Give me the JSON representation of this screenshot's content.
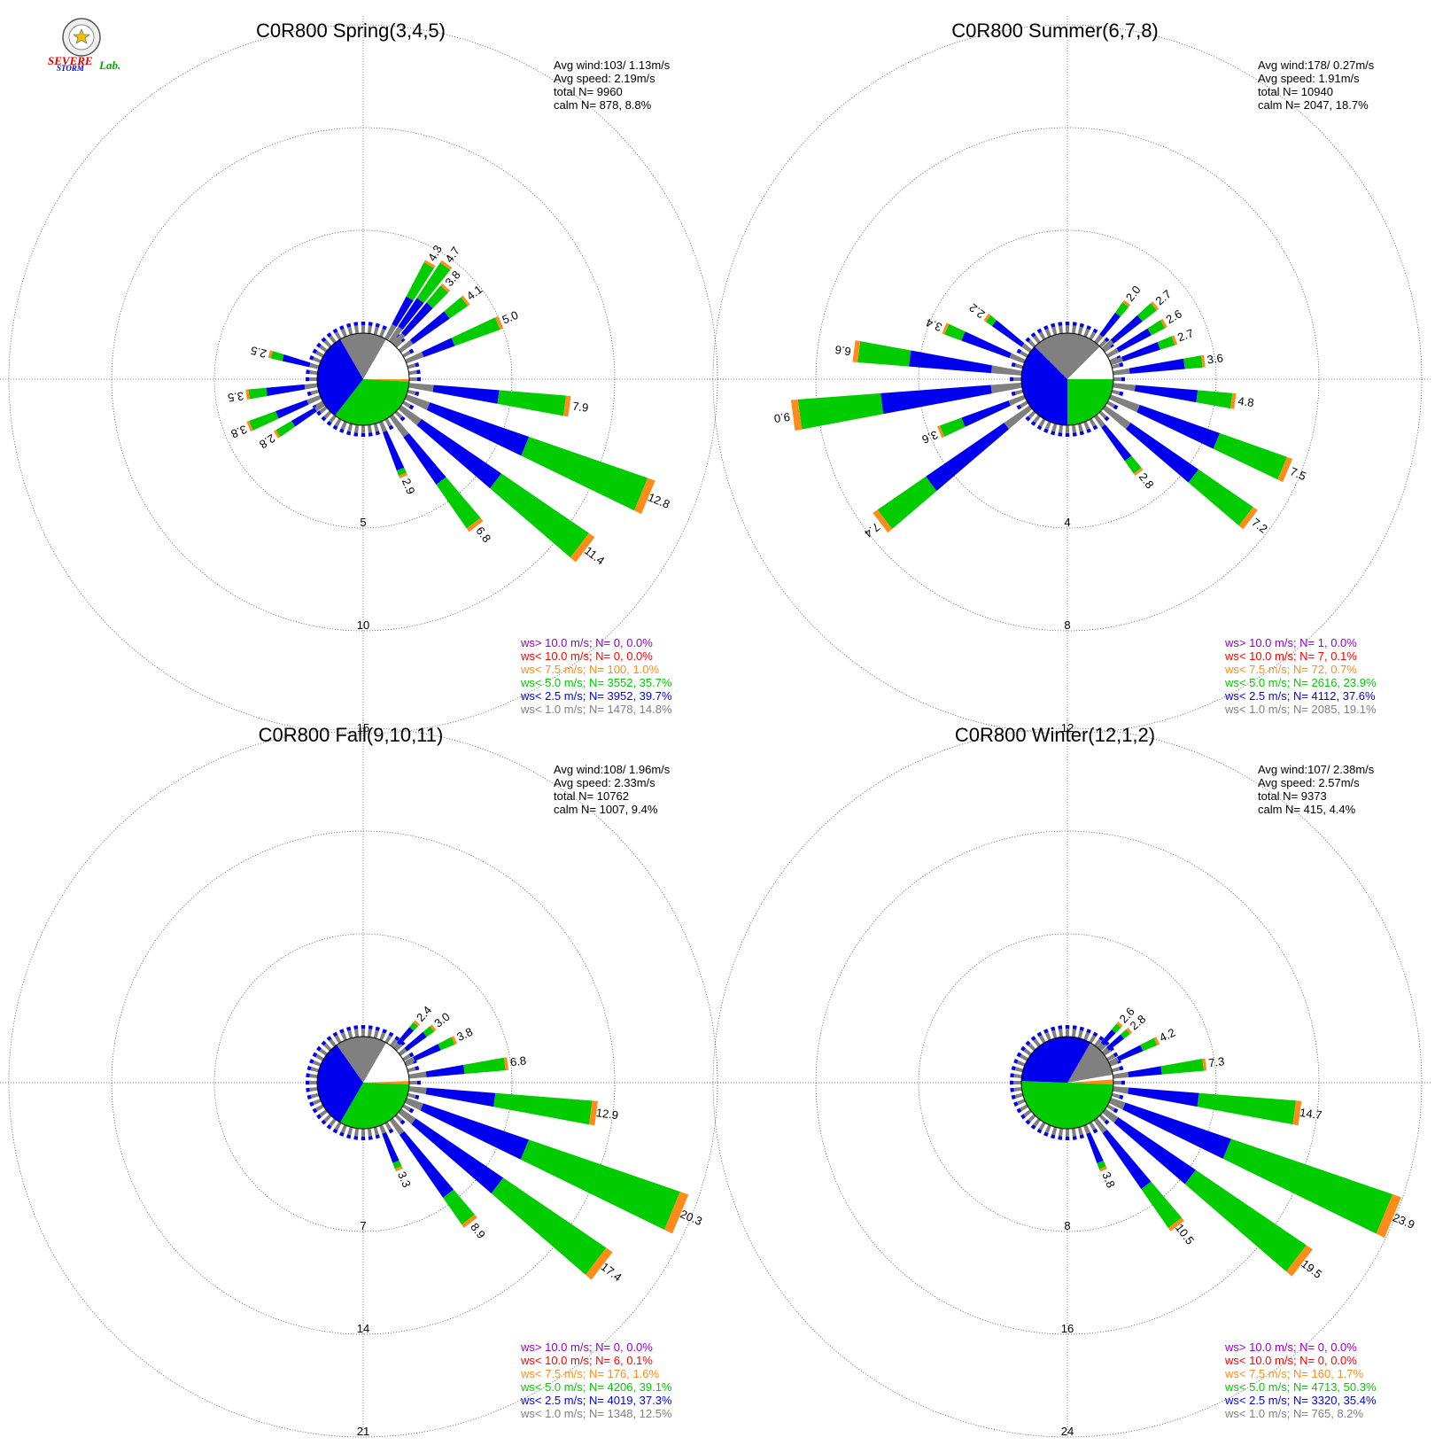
{
  "logo": {
    "line1": "SEVERE",
    "line2": "STORM",
    "line3": "Lab."
  },
  "legend_colors": {
    "gt10": "#9400d3",
    "lt10": "#ff0000",
    "lt7_5": "#ff8c1a",
    "lt5": "#00cc00",
    "lt2_5": "#0000ee",
    "lt1": "#808080"
  },
  "chart_data": [
    {
      "type": "windrose",
      "title": "C0R800 Spring(3,4,5)",
      "stats": [
        "Avg wind:103/ 1.13m/s",
        "Avg speed: 2.19m/s",
        "total N=      9960",
        "calm N=    878,   8.8%"
      ],
      "rings": [
        "5",
        "10",
        "15"
      ],
      "max": 15,
      "calm_pie": [
        {
          "class": "lt1",
          "from": -30,
          "to": 30
        },
        {
          "class": "white",
          "from": 30,
          "to": 90
        },
        {
          "class": "lt7_5",
          "from": 90,
          "to": 93
        },
        {
          "class": "lt5",
          "from": 93,
          "to": 218
        },
        {
          "class": "lt2_5",
          "from": 218,
          "to": 330
        }
      ],
      "petals": [
        {
          "dir": 67.5,
          "total": 5.0,
          "green": 2.5,
          "label": "5.0"
        },
        {
          "dir": 52.5,
          "total": 4.1,
          "green": 1.2,
          "label": "4.1"
        },
        {
          "dir": 42,
          "total": 3.8,
          "green": 1.2,
          "label": "3.8"
        },
        {
          "dir": 36,
          "total": 4.7,
          "green": 2.2,
          "label": "4.7"
        },
        {
          "dir": 30,
          "total": 4.3,
          "green": 2.0,
          "label": "4.3"
        },
        {
          "dir": 97.5,
          "total": 7.9,
          "green": 3.5,
          "label": "7.9"
        },
        {
          "dir": 112.5,
          "total": 12.8,
          "green": 6.5,
          "label": "12.8"
        },
        {
          "dir": 127.5,
          "total": 11.4,
          "green": 5.5,
          "label": "11.4"
        },
        {
          "dir": 142.5,
          "total": 6.8,
          "green": 2.8,
          "label": "6.8"
        },
        {
          "dir": 157.5,
          "total": 2.9,
          "green": 0.4,
          "label": "2.9"
        },
        {
          "dir": 262.5,
          "total": 3.5,
          "green": 1.0,
          "label": "3.5"
        },
        {
          "dir": 247.5,
          "total": 3.8,
          "green": 1.5,
          "label": "3.8"
        },
        {
          "dir": 237.5,
          "total": 2.8,
          "green": 1.0,
          "label": "2.8"
        },
        {
          "dir": 285,
          "total": 2.5,
          "green": 0.7,
          "label": "2.5"
        }
      ],
      "legend": [
        {
          "class": "gt10",
          "text": "ws> 10.0 m/s; N=      0,   0.0%"
        },
        {
          "class": "lt10",
          "text": "ws< 10.0 m/s; N=      0,   0.0%"
        },
        {
          "class": "lt7_5",
          "text": "ws<  7.5 m/s; N=    100,   1.0%"
        },
        {
          "class": "lt5",
          "text": "ws<  5.0 m/s; N=  3552, 35.7%"
        },
        {
          "class": "lt2_5",
          "text": "ws<  2.5 m/s; N=  3952, 39.7%"
        },
        {
          "class": "lt1",
          "text": "ws<  1.0 m/s; N=  1478, 14.8%"
        }
      ]
    },
    {
      "type": "windrose",
      "title": "C0R800 Summer(6,7,8)",
      "stats": [
        "Avg wind:178/ 0.27m/s",
        "Avg speed: 1.91m/s",
        "total N=      10940",
        "calm N=   2047,  18.7%"
      ],
      "rings": [
        "4",
        "8",
        "12"
      ],
      "max": 12,
      "calm_pie": [
        {
          "class": "lt1",
          "from": -45,
          "to": 45
        },
        {
          "class": "white",
          "from": 45,
          "to": 90
        },
        {
          "class": "lt5",
          "from": 90,
          "to": 180
        },
        {
          "class": "lt2_5",
          "from": 180,
          "to": 315
        }
      ],
      "petals": [
        {
          "dir": 82.5,
          "total": 3.6,
          "green": 0.8,
          "label": "3.6"
        },
        {
          "dir": 70,
          "total": 2.7,
          "green": 0.7,
          "label": "2.7"
        },
        {
          "dir": 60,
          "total": 2.6,
          "green": 0.7,
          "label": "2.6"
        },
        {
          "dir": 50,
          "total": 2.7,
          "green": 0.8,
          "label": "2.7"
        },
        {
          "dir": 38,
          "total": 2.0,
          "green": 0.6,
          "label": "2.0"
        },
        {
          "dir": 97.5,
          "total": 4.8,
          "green": 1.5,
          "label": "4.8"
        },
        {
          "dir": 112.5,
          "total": 7.5,
          "green": 3.0,
          "label": "7.5"
        },
        {
          "dir": 127.5,
          "total": 7.2,
          "green": 2.8,
          "label": "7.2"
        },
        {
          "dir": 142.5,
          "total": 2.8,
          "green": 0.7,
          "label": "2.8"
        },
        {
          "dir": 247.5,
          "total": 3.6,
          "green": 1.0,
          "label": "3.6"
        },
        {
          "dir": 262.5,
          "total": 9.0,
          "green": 3.5,
          "label": "9.0"
        },
        {
          "dir": 277.5,
          "total": 6.6,
          "green": 2.2,
          "label": "6.6"
        },
        {
          "dir": 232.5,
          "total": 7.4,
          "green": 2.5,
          "label": "7.4"
        },
        {
          "dir": 292.5,
          "total": 3.4,
          "green": 0.8,
          "label": "3.4"
        },
        {
          "dir": 307.5,
          "total": 2.2,
          "green": 0.4,
          "label": "2.2"
        }
      ],
      "legend": [
        {
          "class": "gt10",
          "text": "ws> 10.0 m/s; N=      1,   0.0%"
        },
        {
          "class": "lt10",
          "text": "ws< 10.0 m/s; N=      7,   0.1%"
        },
        {
          "class": "lt7_5",
          "text": "ws<  7.5 m/s; N=     72,   0.7%"
        },
        {
          "class": "lt5",
          "text": "ws<  5.0 m/s; N=  2616, 23.9%"
        },
        {
          "class": "lt2_5",
          "text": "ws<  2.5 m/s; N=  4112, 37.6%"
        },
        {
          "class": "lt1",
          "text": "ws<  1.0 m/s; N=  2085, 19.1%"
        }
      ]
    },
    {
      "type": "windrose",
      "title": "C0R800 Fall(9,10,11)",
      "stats": [
        "Avg wind:108/ 1.96m/s",
        "Avg speed: 2.33m/s",
        "total N=      10762",
        "calm N=   1007,   9.4%"
      ],
      "rings": [
        "7",
        "14",
        "21"
      ],
      "max": 21,
      "calm_pie": [
        {
          "class": "lt1",
          "from": -35,
          "to": 30
        },
        {
          "class": "white",
          "from": 30,
          "to": 88
        },
        {
          "class": "lt7_5",
          "from": 88,
          "to": 92
        },
        {
          "class": "lt5",
          "from": 92,
          "to": 210
        },
        {
          "class": "lt2_5",
          "from": 210,
          "to": 325
        }
      ],
      "petals": [
        {
          "dir": 82.5,
          "total": 6.8,
          "green": 3.0,
          "label": "6.8"
        },
        {
          "dir": 65,
          "total": 3.8,
          "green": 1.2,
          "label": "3.8"
        },
        {
          "dir": 52,
          "total": 3.0,
          "green": 0.8,
          "label": "3.0"
        },
        {
          "dir": 42,
          "total": 2.4,
          "green": 0.6,
          "label": "2.4"
        },
        {
          "dir": 97.5,
          "total": 12.9,
          "green": 7.0,
          "label": "12.9"
        },
        {
          "dir": 112.5,
          "total": 20.3,
          "green": 11.5,
          "label": "20.3"
        },
        {
          "dir": 127.5,
          "total": 17.4,
          "green": 9.0,
          "label": "17.4"
        },
        {
          "dir": 142.5,
          "total": 8.9,
          "green": 2.5,
          "label": "8.9"
        },
        {
          "dir": 157.5,
          "total": 3.3,
          "green": 0.6,
          "label": "3.3"
        }
      ],
      "legend": [
        {
          "class": "gt10",
          "text": "ws> 10.0 m/s; N=      0,   0.0%"
        },
        {
          "class": "lt10",
          "text": "ws< 10.0 m/s; N=      6,   0.1%"
        },
        {
          "class": "lt7_5",
          "text": "ws<  7.5 m/s; N=    176,   1.6%"
        },
        {
          "class": "lt5",
          "text": "ws<  5.0 m/s; N=  4206, 39.1%"
        },
        {
          "class": "lt2_5",
          "text": "ws<  2.5 m/s; N=  4019, 37.3%"
        },
        {
          "class": "lt1",
          "text": "ws<  1.0 m/s; N=  1348, 12.5%"
        }
      ]
    },
    {
      "type": "windrose",
      "title": "C0R800 Winter(12,1,2)",
      "stats": [
        "Avg wind:107/ 2.38m/s",
        "Avg speed: 2.57m/s",
        "total N=       9373",
        "calm N=    415,   4.4%"
      ],
      "rings": [
        "8",
        "16",
        "24"
      ],
      "max": 24,
      "calm_pie": [
        {
          "class": "lt1",
          "from": 30,
          "to": 80
        },
        {
          "class": "white",
          "from": 80,
          "to": 86
        },
        {
          "class": "lt7_5",
          "from": 86,
          "to": 92
        },
        {
          "class": "lt5",
          "from": 92,
          "to": 272
        },
        {
          "class": "lt2_5",
          "from": 272,
          "to": 390
        }
      ],
      "petals": [
        {
          "dir": 82.5,
          "total": 7.3,
          "green": 3.5,
          "label": "7.3"
        },
        {
          "dir": 65,
          "total": 4.2,
          "green": 1.4,
          "label": "4.2"
        },
        {
          "dir": 50,
          "total": 2.8,
          "green": 0.8,
          "label": "2.8"
        },
        {
          "dir": 42,
          "total": 2.6,
          "green": 0.8,
          "label": "2.6"
        },
        {
          "dir": 97.5,
          "total": 14.7,
          "green": 8.0,
          "label": "14.7"
        },
        {
          "dir": 112.5,
          "total": 23.9,
          "green": 14.0,
          "label": "23.9"
        },
        {
          "dir": 127.5,
          "total": 19.5,
          "green": 11.0,
          "label": "19.5"
        },
        {
          "dir": 142.5,
          "total": 10.5,
          "green": 4.0,
          "label": "10.5"
        },
        {
          "dir": 157.5,
          "total": 3.8,
          "green": 0.7,
          "label": "3.8"
        }
      ],
      "legend": [
        {
          "class": "gt10",
          "text": "ws> 10.0 m/s; N=      0,   0.0%"
        },
        {
          "class": "lt10",
          "text": "ws< 10.0 m/s; N=      0,   0.0%"
        },
        {
          "class": "lt7_5",
          "text": "ws<  7.5 m/s; N=    160,   1.7%"
        },
        {
          "class": "lt5",
          "text": "ws<  5.0 m/s; N=  4713, 50.3%"
        },
        {
          "class": "lt2_5",
          "text": "ws<  2.5 m/s; N=  3320, 35.4%"
        },
        {
          "class": "lt1",
          "text": "ws<  1.0 m/s; N=   765,   8.2%"
        }
      ]
    }
  ]
}
